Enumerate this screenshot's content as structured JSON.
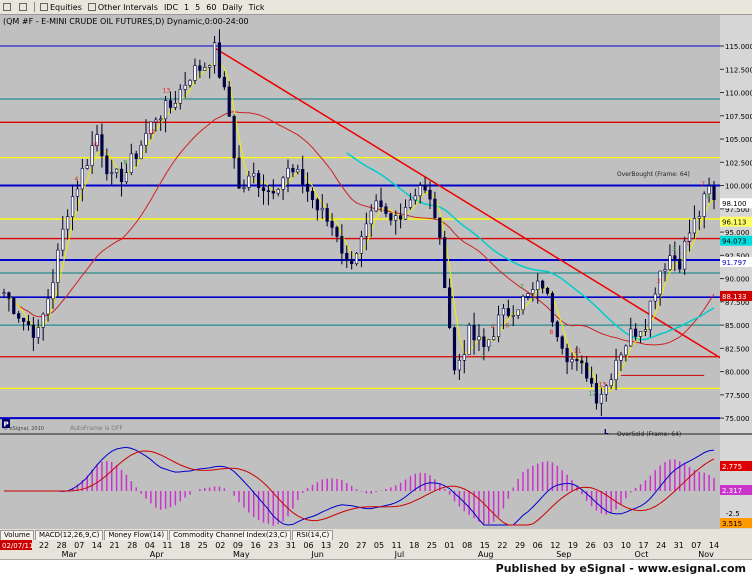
{
  "toolbar": {
    "items": [
      "Equities",
      "Other Intervals",
      "IDC",
      "1",
      "5",
      "60",
      "Daily",
      "Tick"
    ],
    "icons": [
      "grid-icon",
      "chart-icon",
      "link-icon",
      "clock-icon",
      "bars-icon"
    ]
  },
  "chart": {
    "header": "(QM #F - E-MINI CRUDE OIL FUTURES,D) Dynamic,0:00-24:00",
    "copyright": "© eSignal, 2010",
    "autoframe": "AutoFrame is OFF",
    "overbought": "OverBought (Frame: 64)",
    "oversold": "OverSold (Frame: 64)",
    "start_date": "02/07/11",
    "marker_p": "P",
    "marker_l": "L"
  },
  "tabs": [
    "Volume",
    "MACD(12,26,9,C)",
    "Money Flow(14)",
    "Commodity Channel Index(23,C)",
    "RSI(14,C)"
  ],
  "footer": {
    "text": "Published by eSignal - www.esignal.com"
  },
  "chart_data": {
    "type": "candlestick",
    "ylim": [
      73.4,
      116.4
    ],
    "price_ticks": [
      "115.000",
      "112.500",
      "110.000",
      "107.500",
      "105.000",
      "102.500",
      "100.000",
      "97.500",
      "95.000",
      "92.500",
      "90.000",
      "87.500",
      "85.000",
      "82.500",
      "80.000",
      "77.500",
      "75.000"
    ],
    "current_labels": [
      {
        "text": "98.100",
        "price": 98.1,
        "bg": "#ffffff",
        "fg": "#000000"
      },
      {
        "text": "96.113",
        "price": 96.113,
        "bg": "#ffff66",
        "fg": "#000000"
      },
      {
        "text": "94.073",
        "price": 94.073,
        "bg": "#00dddd",
        "fg": "#000000"
      },
      {
        "text": "91.797",
        "price": 91.797,
        "bg": "#ffffff",
        "fg": "#0000cc"
      },
      {
        "text": "88.133",
        "price": 88.133,
        "bg": "#cc0000",
        "fg": "#ffffff"
      }
    ],
    "levels": [
      {
        "price": 115.0,
        "color": "#0000cc",
        "width": 1
      },
      {
        "price": 109.3,
        "color": "#008080",
        "width": 1
      },
      {
        "price": 106.8,
        "color": "#dd0000",
        "width": 1.3
      },
      {
        "price": 103.0,
        "color": "#ffff00",
        "width": 1.3
      },
      {
        "price": 100.0,
        "color": "#0000cc",
        "width": 2
      },
      {
        "price": 96.4,
        "color": "#ffff00",
        "width": 1.3
      },
      {
        "price": 94.3,
        "color": "#dd0000",
        "width": 1.3
      },
      {
        "price": 92.0,
        "color": "#0000cc",
        "width": 2
      },
      {
        "price": 90.6,
        "color": "#008080",
        "width": 1
      },
      {
        "price": 88.0,
        "color": "#0000cc",
        "width": 1.6
      },
      {
        "price": 85.0,
        "color": "#008080",
        "width": 1
      },
      {
        "price": 81.6,
        "color": "#dd0000",
        "width": 1.3
      },
      {
        "price": 78.2,
        "color": "#ffff00",
        "width": 1.3
      },
      {
        "price": 75.0,
        "color": "#0000cc",
        "width": 2
      }
    ],
    "anchors": [
      [
        0,
        88.5
      ],
      [
        4,
        85.5
      ],
      [
        7,
        84.0
      ],
      [
        10,
        90.0
      ],
      [
        13,
        97.5
      ],
      [
        16,
        101.5
      ],
      [
        19,
        105.5
      ],
      [
        22,
        100.5
      ],
      [
        25,
        101.5
      ],
      [
        28,
        104.5
      ],
      [
        31,
        107.5
      ],
      [
        34,
        108.5
      ],
      [
        38,
        112.0
      ],
      [
        41,
        113.0
      ],
      [
        43,
        114.5
      ],
      [
        46,
        107.5
      ],
      [
        48,
        99.5
      ],
      [
        51,
        101.0
      ],
      [
        54,
        99.5
      ],
      [
        58,
        101.5
      ],
      [
        61,
        100.5
      ],
      [
        64,
        97.5
      ],
      [
        68,
        95.0
      ],
      [
        70,
        91.5
      ],
      [
        73,
        94.0
      ],
      [
        76,
        97.5
      ],
      [
        79,
        96.0
      ],
      [
        82,
        98.0
      ],
      [
        85,
        100.2
      ],
      [
        88,
        97.0
      ],
      [
        90,
        90.0
      ],
      [
        92,
        80.0
      ],
      [
        95,
        84.0
      ],
      [
        98,
        82.5
      ],
      [
        101,
        85.5
      ],
      [
        104,
        87.0
      ],
      [
        107,
        88.0
      ],
      [
        110,
        89.5
      ],
      [
        112,
        86.0
      ],
      [
        115,
        82.0
      ],
      [
        117,
        80.5
      ],
      [
        119,
        80.0
      ],
      [
        121,
        77.5
      ],
      [
        123,
        78.5
      ],
      [
        125,
        81.5
      ],
      [
        128,
        84.0
      ],
      [
        131,
        85.5
      ],
      [
        134,
        91.0
      ],
      [
        136,
        92.5
      ],
      [
        138,
        92.0
      ],
      [
        140,
        95.0
      ],
      [
        142,
        97.0
      ],
      [
        144,
        99.5
      ],
      [
        145,
        98.2
      ]
    ],
    "bar_count": 146,
    "date_ticks": [
      "22",
      "28",
      "07",
      "14",
      "21",
      "28",
      "04",
      "11",
      "18",
      "25",
      "02",
      "09",
      "16",
      "23",
      "31",
      "06",
      "13",
      "20",
      "27",
      "05",
      "11",
      "18",
      "25",
      "01",
      "08",
      "15",
      "22",
      "29",
      "06",
      "12",
      "19",
      "26",
      "03",
      "10",
      "17",
      "24",
      "31",
      "07",
      "14"
    ],
    "month_labels": [
      {
        "label": "Mar",
        "bar": 13
      },
      {
        "label": "Apr",
        "bar": 31
      },
      {
        "label": "May",
        "bar": 48
      },
      {
        "label": "Jun",
        "bar": 64
      },
      {
        "label": "Jul",
        "bar": 81
      },
      {
        "label": "Aug",
        "bar": 98
      },
      {
        "label": "Sep",
        "bar": 114
      },
      {
        "label": "Oct",
        "bar": 130
      },
      {
        "label": "Nov",
        "bar": 143
      }
    ],
    "macd_labels": [
      {
        "text": "2.775",
        "bg": "#dd0000",
        "fg": "#ffffff"
      },
      {
        "text": "2.317",
        "bg": "#cc33cc",
        "fg": "#ffffff"
      },
      {
        "text": "3.515",
        "bg": "#ff9900",
        "fg": "#000000"
      }
    ],
    "macd_tick": "-2.5"
  }
}
